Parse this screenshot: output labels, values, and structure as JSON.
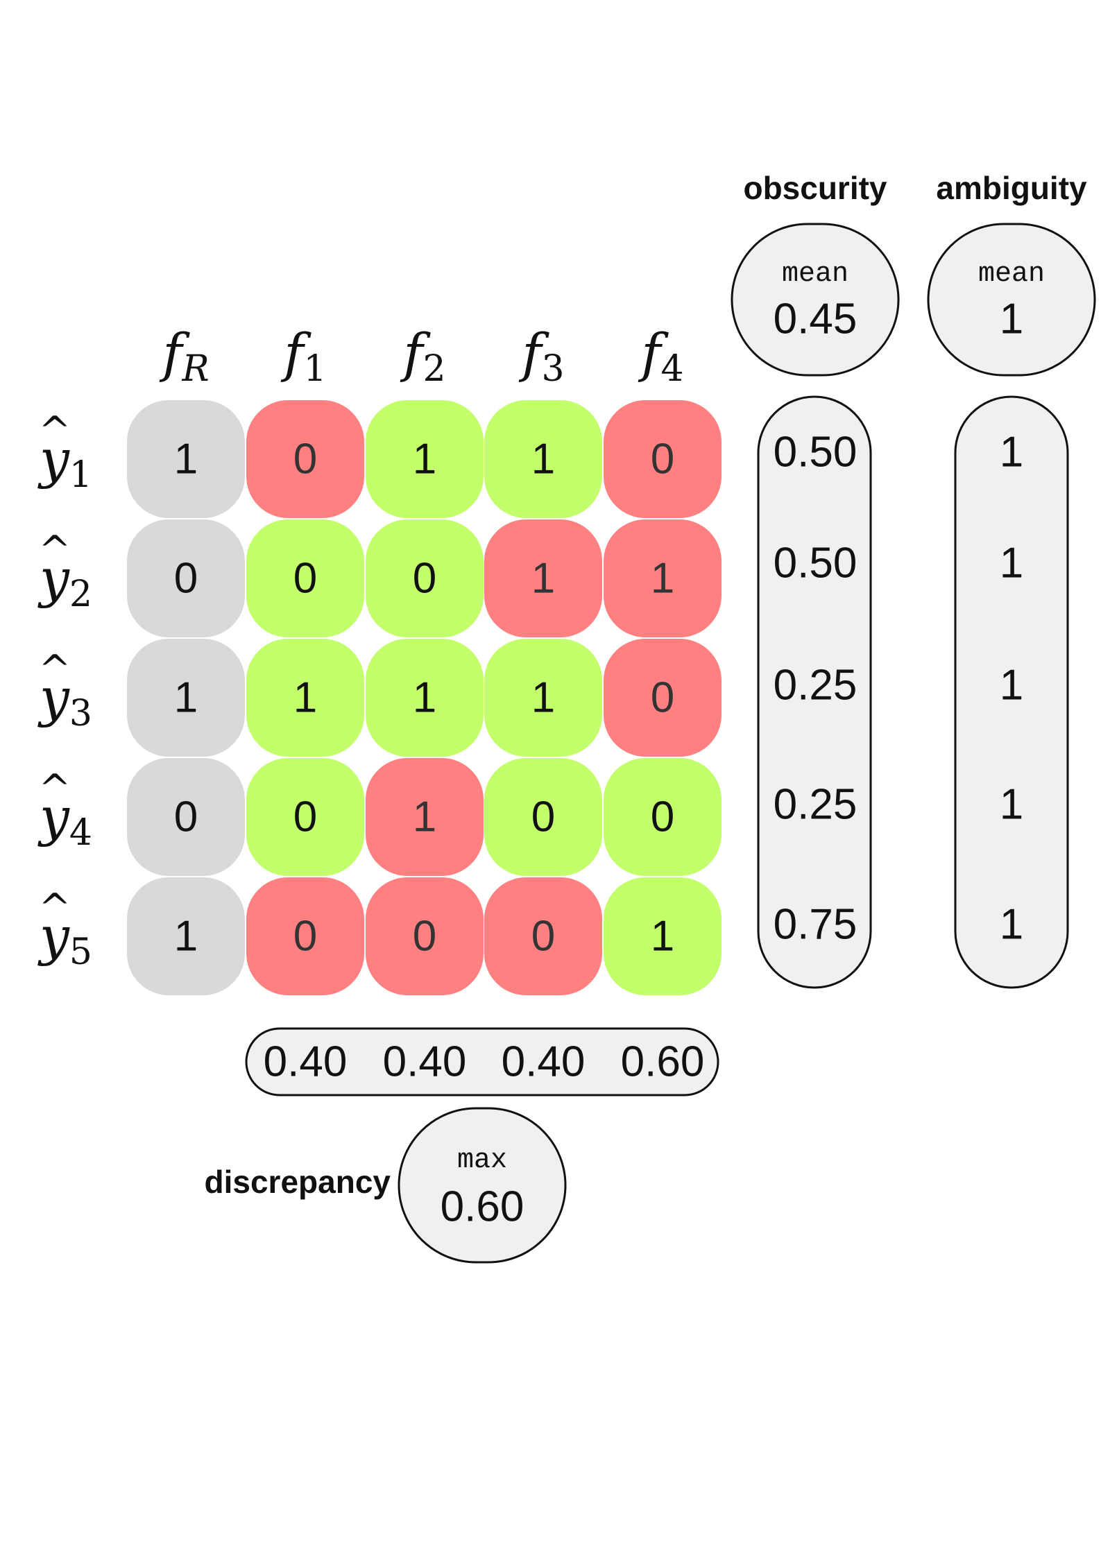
{
  "colors": {
    "reference": "#d9d9d9",
    "agree": "#c3ff6b",
    "disagree": "#ff8080",
    "summary_fill": "#f0f0f0",
    "summary_stroke": "#111111"
  },
  "columns": [
    {
      "base": "f",
      "sub": "R"
    },
    {
      "base": "f",
      "sub": "1"
    },
    {
      "base": "f",
      "sub": "2"
    },
    {
      "base": "f",
      "sub": "3"
    },
    {
      "base": "f",
      "sub": "4"
    }
  ],
  "rows": [
    {
      "base": "y",
      "hat": "^",
      "sub": "1"
    },
    {
      "base": "y",
      "hat": "^",
      "sub": "2"
    },
    {
      "base": "y",
      "hat": "^",
      "sub": "3"
    },
    {
      "base": "y",
      "hat": "^",
      "sub": "4"
    },
    {
      "base": "y",
      "hat": "^",
      "sub": "5"
    }
  ],
  "matrix": [
    [
      {
        "v": "1",
        "s": "reference"
      },
      {
        "v": "0",
        "s": "disagree"
      },
      {
        "v": "1",
        "s": "agree"
      },
      {
        "v": "1",
        "s": "agree"
      },
      {
        "v": "0",
        "s": "disagree"
      }
    ],
    [
      {
        "v": "0",
        "s": "reference"
      },
      {
        "v": "0",
        "s": "agree"
      },
      {
        "v": "0",
        "s": "agree"
      },
      {
        "v": "1",
        "s": "disagree"
      },
      {
        "v": "1",
        "s": "disagree"
      }
    ],
    [
      {
        "v": "1",
        "s": "reference"
      },
      {
        "v": "1",
        "s": "agree"
      },
      {
        "v": "1",
        "s": "agree"
      },
      {
        "v": "1",
        "s": "agree"
      },
      {
        "v": "0",
        "s": "disagree"
      }
    ],
    [
      {
        "v": "0",
        "s": "reference"
      },
      {
        "v": "0",
        "s": "agree"
      },
      {
        "v": "1",
        "s": "disagree"
      },
      {
        "v": "0",
        "s": "agree"
      },
      {
        "v": "0",
        "s": "agree"
      }
    ],
    [
      {
        "v": "1",
        "s": "reference"
      },
      {
        "v": "0",
        "s": "disagree"
      },
      {
        "v": "0",
        "s": "disagree"
      },
      {
        "v": "0",
        "s": "disagree"
      },
      {
        "v": "1",
        "s": "agree"
      }
    ]
  ],
  "obscurity": {
    "title": "obscurity",
    "agg_label": "mean",
    "agg_value": "0.45",
    "values": [
      "0.50",
      "0.50",
      "0.25",
      "0.25",
      "0.75"
    ]
  },
  "ambiguity": {
    "title": "ambiguity",
    "agg_label": "mean",
    "agg_value": "1",
    "values": [
      "1",
      "1",
      "1",
      "1",
      "1"
    ]
  },
  "discrepancy": {
    "title": "discrepancy",
    "agg_label": "max",
    "agg_value": "0.60",
    "values": [
      "0.40",
      "0.40",
      "0.40",
      "0.60"
    ]
  }
}
